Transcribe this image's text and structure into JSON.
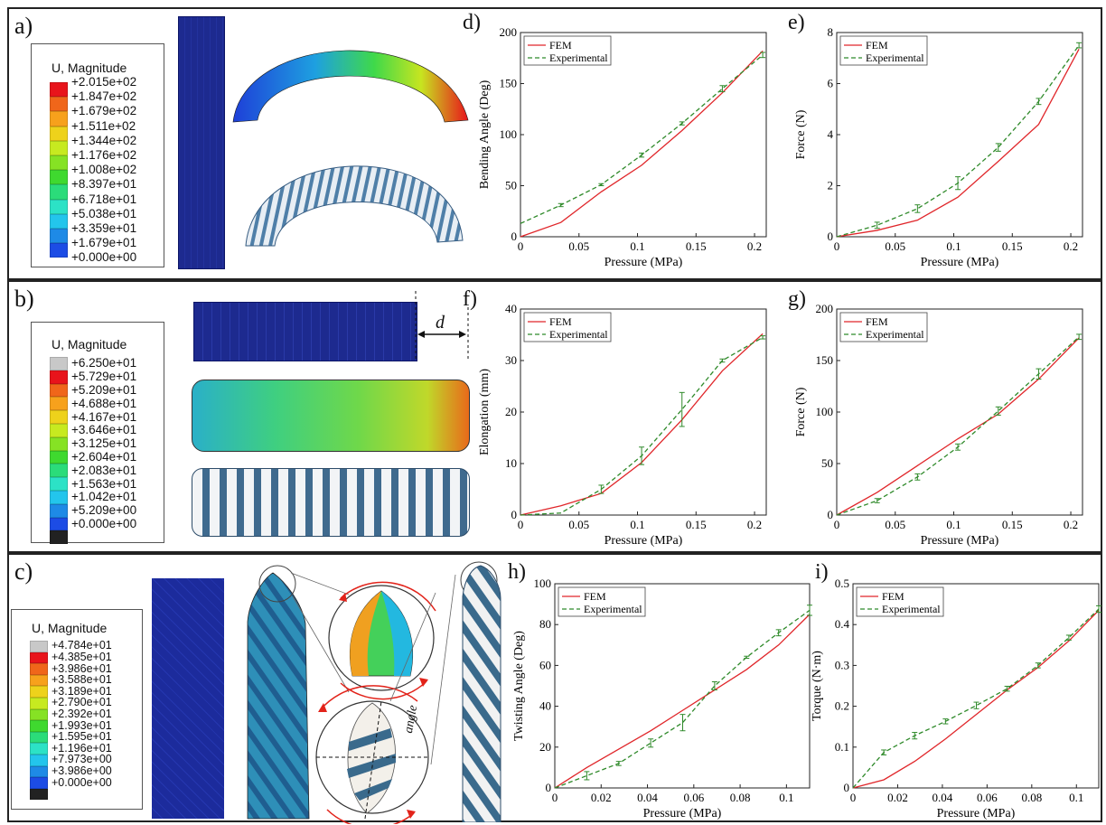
{
  "panels": {
    "a": {
      "label": "a)"
    },
    "b": {
      "label": "b)"
    },
    "c": {
      "label": "c)"
    },
    "d": {
      "label": "d)"
    },
    "e": {
      "label": "e)"
    },
    "f": {
      "label": "f)"
    },
    "g": {
      "label": "g)"
    },
    "h": {
      "label": "h)"
    },
    "i": {
      "label": "i)"
    }
  },
  "legends": {
    "a": {
      "title": "U, Magnitude",
      "values": [
        "+2.015e+02",
        "+1.847e+02",
        "+1.679e+02",
        "+1.511e+02",
        "+1.344e+02",
        "+1.176e+02",
        "+1.008e+02",
        "+8.397e+01",
        "+6.718e+01",
        "+5.038e+01",
        "+3.359e+01",
        "+1.679e+01",
        "+0.000e+00"
      ],
      "colors": [
        "#e8141b",
        "#f0661a",
        "#f7a11c",
        "#eed21b",
        "#c7ea20",
        "#86e224",
        "#3fd92f",
        "#2bdc7a",
        "#2ce2c6",
        "#23c5ec",
        "#1e8ae6",
        "#1c4ce5"
      ]
    },
    "b": {
      "title": "U, Magnitude",
      "values": [
        "+6.250e+01",
        "+5.729e+01",
        "+5.209e+01",
        "+4.688e+01",
        "+4.167e+01",
        "+3.646e+01",
        "+3.125e+01",
        "+2.604e+01",
        "+2.083e+01",
        "+1.563e+01",
        "+1.042e+01",
        "+5.209e+00",
        "+0.000e+00"
      ],
      "colors": [
        "#c8c8c8",
        "#e8141b",
        "#f0661a",
        "#f7a11c",
        "#eed21b",
        "#c7ea20",
        "#86e224",
        "#3fd92f",
        "#2bdc7a",
        "#2ce2c6",
        "#23c5ec",
        "#1e8ae6",
        "#1c4ce5",
        "#222222"
      ]
    },
    "c": {
      "title": "U, Magnitude",
      "values": [
        "+4.784e+01",
        "+4.385e+01",
        "+3.986e+01",
        "+3.588e+01",
        "+3.189e+01",
        "+2.790e+01",
        "+2.392e+01",
        "+1.993e+01",
        "+1.595e+01",
        "+1.196e+01",
        "+7.973e+00",
        "+3.986e+00",
        "+0.000e+00"
      ],
      "colors": [
        "#c8c8c8",
        "#e8141b",
        "#f0661a",
        "#f7a11c",
        "#eed21b",
        "#c7ea20",
        "#86e224",
        "#3fd92f",
        "#2bdc7a",
        "#2ce2c6",
        "#23c5ec",
        "#1e8ae6",
        "#1c4ce5",
        "#222222"
      ]
    }
  },
  "annotations": {
    "d_symbol": "d",
    "angle_label": "angle"
  },
  "chart_data": [
    {
      "id": "d",
      "type": "line",
      "xlabel": "Pressure (MPa)",
      "ylabel": "Bending Angle (Deg)",
      "xlim": [
        0,
        0.21
      ],
      "ylim": [
        0,
        200
      ],
      "xticks": [
        "0",
        "0.05",
        "0.1",
        "0.15",
        "0.2"
      ],
      "xtick_vals": [
        0,
        0.05,
        0.1,
        0.15,
        0.2
      ],
      "yticks": [
        "0",
        "50",
        "100",
        "150",
        "200"
      ],
      "ytick_vals": [
        0,
        50,
        100,
        150,
        200
      ],
      "legend": [
        "FEM",
        "Experimental"
      ],
      "series": [
        {
          "name": "FEM",
          "x": [
            0,
            0.0345,
            0.069,
            0.1035,
            0.138,
            0.1725,
            0.207
          ],
          "y": [
            0,
            14,
            44,
            70,
            104,
            141,
            182
          ]
        },
        {
          "name": "Experimental",
          "x": [
            0,
            0.0345,
            0.069,
            0.1035,
            0.138,
            0.1725,
            0.207
          ],
          "y": [
            13,
            31,
            51,
            80,
            111,
            145,
            178
          ],
          "err": [
            0,
            1.5,
            1,
            2,
            1.5,
            3,
            2.5
          ]
        }
      ]
    },
    {
      "id": "e",
      "type": "line",
      "xlabel": "Pressure (MPa)",
      "ylabel": "Force (N)",
      "xlim": [
        0,
        0.21
      ],
      "ylim": [
        0,
        8
      ],
      "xticks": [
        "0",
        "0.05",
        "0.1",
        "0.15",
        "0.2"
      ],
      "xtick_vals": [
        0,
        0.05,
        0.1,
        0.15,
        0.2
      ],
      "yticks": [
        "0",
        "2",
        "4",
        "6",
        "8"
      ],
      "ytick_vals": [
        0,
        2,
        4,
        6,
        8
      ],
      "legend": [
        "FEM",
        "Experimental"
      ],
      "series": [
        {
          "name": "FEM",
          "x": [
            0,
            0.0345,
            0.069,
            0.1035,
            0.138,
            0.1725,
            0.207
          ],
          "y": [
            0,
            0.25,
            0.65,
            1.55,
            2.95,
            4.4,
            7.35
          ]
        },
        {
          "name": "Experimental",
          "x": [
            0,
            0.0345,
            0.069,
            0.1035,
            0.138,
            0.1725,
            0.207
          ],
          "y": [
            0,
            0.45,
            1.1,
            2.1,
            3.5,
            5.3,
            7.5
          ],
          "err": [
            0,
            0.12,
            0.15,
            0.25,
            0.15,
            0.12,
            0.1
          ]
        }
      ]
    },
    {
      "id": "f",
      "type": "line",
      "xlabel": "Pressure (MPa)",
      "ylabel": "Elongation (mm)",
      "xlim": [
        0,
        0.21
      ],
      "ylim": [
        0,
        40
      ],
      "xticks": [
        "0",
        "0.05",
        "0.1",
        "0.15",
        "0.2"
      ],
      "xtick_vals": [
        0,
        0.05,
        0.1,
        0.15,
        0.2
      ],
      "yticks": [
        "0",
        "10",
        "20",
        "30",
        "40"
      ],
      "ytick_vals": [
        0,
        10,
        20,
        30,
        40
      ],
      "legend": [
        "FEM",
        "Experimental"
      ],
      "series": [
        {
          "name": "FEM",
          "x": [
            0,
            0.0345,
            0.069,
            0.1035,
            0.138,
            0.1725,
            0.207
          ],
          "y": [
            0,
            1.8,
            4.2,
            10.2,
            18.5,
            28,
            35.2
          ]
        },
        {
          "name": "Experimental",
          "x": [
            0,
            0.0345,
            0.069,
            0.1035,
            0.138,
            0.1725,
            0.207
          ],
          "y": [
            0,
            0.4,
            5,
            11.5,
            20.5,
            30,
            34.5
          ],
          "err": [
            0,
            0,
            0.8,
            1.7,
            3.3,
            0.3,
            0.3
          ]
        }
      ]
    },
    {
      "id": "g",
      "type": "line",
      "xlabel": "Pressure (MPa)",
      "ylabel": "Force (N)",
      "xlim": [
        0,
        0.21
      ],
      "ylim": [
        0,
        200
      ],
      "xticks": [
        "0",
        "0.05",
        "0.1",
        "0.15",
        "0.2"
      ],
      "xtick_vals": [
        0,
        0.05,
        0.1,
        0.15,
        0.2
      ],
      "yticks": [
        "0",
        "50",
        "100",
        "150",
        "200"
      ],
      "ytick_vals": [
        0,
        50,
        100,
        150,
        200
      ],
      "legend": [
        "FEM",
        "Experimental"
      ],
      "series": [
        {
          "name": "FEM",
          "x": [
            0,
            0.0345,
            0.069,
            0.1035,
            0.138,
            0.1725,
            0.207
          ],
          "y": [
            0,
            22,
            48,
            74,
            98,
            132,
            172
          ]
        },
        {
          "name": "Experimental",
          "x": [
            0,
            0.0345,
            0.069,
            0.1035,
            0.138,
            0.1725,
            0.207
          ],
          "y": [
            0,
            14,
            37,
            66,
            101,
            137,
            173
          ],
          "err": [
            0,
            2,
            3,
            3,
            4,
            5,
            2.5
          ]
        }
      ]
    },
    {
      "id": "h",
      "type": "line",
      "xlabel": "Pressure (MPa)",
      "ylabel": "Twisting Angle (Deg)",
      "xlim": [
        0,
        0.11
      ],
      "ylim": [
        0,
        100
      ],
      "xticks": [
        "0",
        "0.02",
        "0.04",
        "0.06",
        "0.08",
        "0.1"
      ],
      "xtick_vals": [
        0,
        0.02,
        0.04,
        0.06,
        0.08,
        0.1
      ],
      "yticks": [
        "0",
        "20",
        "40",
        "60",
        "80",
        "100"
      ],
      "ytick_vals": [
        0,
        20,
        40,
        60,
        80,
        100
      ],
      "legend": [
        "FEM",
        "Experimental"
      ],
      "series": [
        {
          "name": "FEM",
          "x": [
            0,
            0.0138,
            0.0276,
            0.0414,
            0.0552,
            0.069,
            0.0828,
            0.0966,
            0.11
          ],
          "y": [
            0,
            10,
            19,
            28,
            38,
            48,
            58,
            70,
            85
          ]
        },
        {
          "name": "Experimental",
          "x": [
            0,
            0.0138,
            0.0276,
            0.0414,
            0.0552,
            0.069,
            0.0828,
            0.0966,
            0.11
          ],
          "y": [
            0,
            6,
            12,
            22,
            32,
            50,
            64,
            76,
            87
          ],
          "err": [
            0,
            2,
            1,
            2,
            4,
            2,
            0.5,
            1.5,
            2.5
          ]
        }
      ]
    },
    {
      "id": "i",
      "type": "line",
      "xlabel": "Pressure (MPa)",
      "ylabel": "Torque (N·m)",
      "xlim": [
        0,
        0.11
      ],
      "ylim": [
        0,
        0.5
      ],
      "xticks": [
        "0",
        "0.02",
        "0.04",
        "0.06",
        "0.08",
        "0.1"
      ],
      "xtick_vals": [
        0,
        0.02,
        0.04,
        0.06,
        0.08,
        0.1
      ],
      "yticks": [
        "0",
        "0.1",
        "0.2",
        "0.3",
        "0.4",
        "0.5"
      ],
      "ytick_vals": [
        0,
        0.1,
        0.2,
        0.3,
        0.4,
        0.5
      ],
      "legend": [
        "FEM",
        "Experimental"
      ],
      "series": [
        {
          "name": "FEM",
          "x": [
            0,
            0.0138,
            0.0276,
            0.0414,
            0.0552,
            0.069,
            0.0828,
            0.0966,
            0.11
          ],
          "y": [
            0,
            0.02,
            0.065,
            0.12,
            0.18,
            0.24,
            0.295,
            0.36,
            0.435
          ]
        },
        {
          "name": "Experimental",
          "x": [
            0,
            0.0138,
            0.0276,
            0.0414,
            0.0552,
            0.069,
            0.0828,
            0.0966,
            0.11
          ],
          "y": [
            0,
            0.087,
            0.128,
            0.163,
            0.202,
            0.243,
            0.3,
            0.368,
            0.438
          ],
          "err": [
            0,
            0.006,
            0.008,
            0.006,
            0.008,
            0.006,
            0.006,
            0.006,
            0.008
          ]
        }
      ]
    }
  ]
}
